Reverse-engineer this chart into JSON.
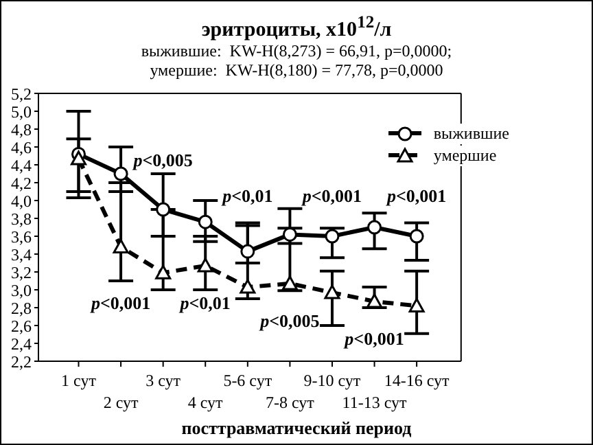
{
  "chart_data": {
    "type": "line",
    "title": "эритроциты, x10$^{12}$/л",
    "subtitle": "выжившие:  KW-H(8,273) = 66,91, p=0,0000;\nумершие:  KW-H(8,180) = 77,78, p=0,0000",
    "xlabel": "посттравматический период",
    "categories": [
      "1 сут",
      "2 сут",
      "3 сут",
      "4 сут",
      "5-6 сут",
      "7-8 сут",
      "9-10 сут",
      "11-13 сут",
      "14-16 сут"
    ],
    "series": [
      {
        "name": "выжившие",
        "color": "#000000",
        "marker": "circle",
        "line_style": "solid",
        "values": [
          4.52,
          4.3,
          3.9,
          3.76,
          3.43,
          3.62,
          3.6,
          3.7,
          3.6
        ],
        "errors": [
          [
            4.03,
            5.0
          ],
          [
            4.1,
            4.6
          ],
          [
            3.6,
            4.3
          ],
          [
            3.54,
            4.0
          ],
          [
            3.3,
            3.75
          ],
          [
            3.52,
            3.91
          ],
          [
            3.36,
            3.69
          ],
          [
            3.46,
            3.86
          ],
          [
            3.33,
            3.75
          ]
        ]
      },
      {
        "name": "умершие",
        "color": "#000000",
        "marker": "triangle",
        "line_style": "dashed",
        "values": [
          4.47,
          3.48,
          3.19,
          3.27,
          3.03,
          3.07,
          2.97,
          2.87,
          2.82
        ],
        "errors": [
          [
            4.1,
            4.69
          ],
          [
            3.1,
            4.2
          ],
          [
            3.0,
            3.9
          ],
          [
            3.0,
            3.6
          ],
          [
            2.9,
            3.72
          ],
          [
            2.99,
            3.69
          ],
          [
            2.6,
            3.21
          ],
          [
            2.8,
            3.03
          ],
          [
            2.51,
            3.21
          ]
        ]
      }
    ],
    "ylim": [
      2.2,
      5.2
    ],
    "yticks": [
      {
        "value": 2.2,
        "label": "2,2"
      },
      {
        "value": 2.4,
        "label": "2,4"
      },
      {
        "value": 2.6,
        "label": "2,6"
      },
      {
        "value": 2.8,
        "label": "2,8"
      },
      {
        "value": 3.0,
        "label": "3,0"
      },
      {
        "value": 3.2,
        "label": "3,2"
      },
      {
        "value": 3.4,
        "label": "3,4"
      },
      {
        "value": 3.6,
        "label": "3,6"
      },
      {
        "value": 3.8,
        "label": "3,8"
      },
      {
        "value": 4.0,
        "label": "4,0"
      },
      {
        "value": 4.2,
        "label": "4,2"
      },
      {
        "value": 4.4,
        "label": "4,4"
      },
      {
        "value": 4.6,
        "label": "4,6"
      },
      {
        "value": 4.8,
        "label": "4,8"
      },
      {
        "value": 5.0,
        "label": "5,0"
      },
      {
        "value": 5.2,
        "label": "5,2"
      }
    ],
    "grid": false,
    "legend": "top right",
    "annotations": [
      "p<0,005",
      "p<0,001",
      "p<0,01",
      "p<0,01",
      "p<0,005",
      "p<0,001",
      "p<0,001",
      "p<0,001"
    ]
  }
}
